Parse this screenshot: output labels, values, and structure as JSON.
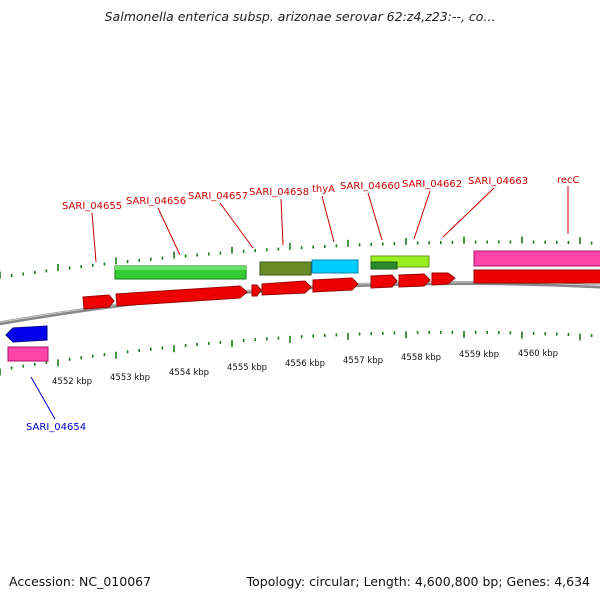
{
  "title": "Salmonella enterica subsp. arizonae serovar 62:z4,z23:--, co...",
  "footer": {
    "accession": "Accession: NC_010067",
    "summary": "Topology: circular; Length: 4,600,800 bp; Genes: 4,634"
  },
  "colors": {
    "label_red": "#cc0000",
    "label_blue": "#0000cc",
    "tick_green": "#1f7a1f",
    "backbone": "#888888"
  },
  "scale_labels": [
    "4552 kbp",
    "4553 kbp",
    "4554 kbp",
    "4555 kbp",
    "4556 kbp",
    "4557 kbp",
    "4558 kbp",
    "4559 kbp",
    "4560 kbp"
  ],
  "gene_labels": [
    {
      "text": "SARI_04654",
      "color": "#0000cc"
    },
    {
      "text": "SARI_04655",
      "color": "#cc0000"
    },
    {
      "text": "SARI_04656",
      "color": "#cc0000"
    },
    {
      "text": "SARI_04657",
      "color": "#cc0000"
    },
    {
      "text": "SARI_04658",
      "color": "#cc0000"
    },
    {
      "text": "thyA",
      "color": "#cc0000"
    },
    {
      "text": "SARI_04660",
      "color": "#cc0000"
    },
    {
      "text": "SARI_04662",
      "color": "#cc0000"
    },
    {
      "text": "SARI_04663",
      "color": "#cc0000"
    },
    {
      "text": "recC",
      "color": "#cc0000"
    }
  ]
}
